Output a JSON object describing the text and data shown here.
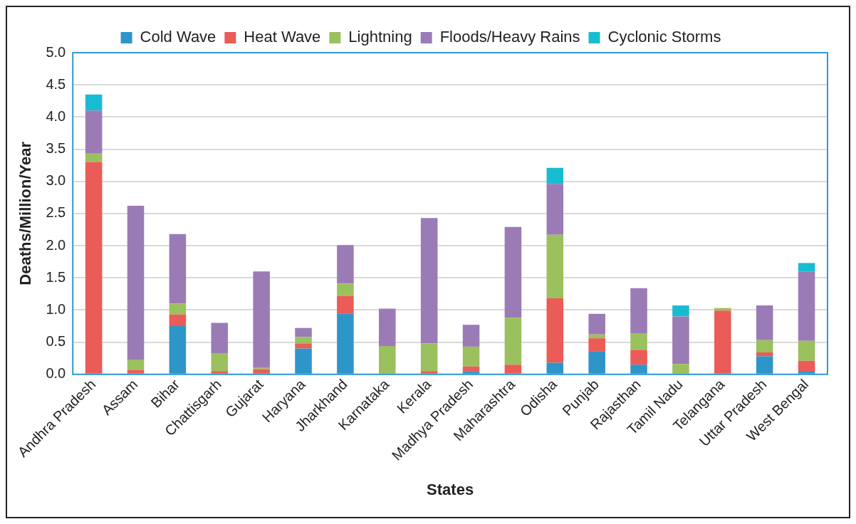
{
  "chart_data": {
    "type": "bar",
    "stacked": true,
    "xlabel": "States",
    "ylabel": "Deaths/Million/Year",
    "categories": [
      "Andhra Pradesh",
      "Assam",
      "Bihar",
      "Chattisgarh",
      "Gujarat",
      "Haryana",
      "Jharkhand",
      "Karnataka",
      "Kerala",
      "Madhya Pradesh",
      "Maharashtra",
      "Odisha",
      "Punjab",
      "Rajasthan",
      "Tamil Nadu",
      "Telangana",
      "Uttar Pradesh",
      "West Bengal"
    ],
    "series": [
      {
        "name": "Cold Wave",
        "color": "#2e95c9",
        "values": [
          0,
          0,
          0.75,
          0,
          0,
          0.4,
          0.94,
          0,
          0,
          0.05,
          0,
          0.18,
          0.36,
          0.15,
          0,
          0,
          0.28,
          0.04
        ]
      },
      {
        "name": "Heat Wave",
        "color": "#eb5b57",
        "values": [
          3.3,
          0.07,
          0.18,
          0.05,
          0.08,
          0.08,
          0.28,
          0,
          0.05,
          0.07,
          0.15,
          1.0,
          0.2,
          0.23,
          0,
          0.99,
          0.06,
          0.17
        ]
      },
      {
        "name": "Lightning",
        "color": "#9bc05e",
        "values": [
          0.13,
          0.16,
          0.17,
          0.28,
          0.02,
          0.1,
          0.19,
          0.44,
          0.43,
          0.31,
          0.73,
          0.99,
          0.06,
          0.26,
          0.16,
          0.04,
          0.19,
          0.31
        ]
      },
      {
        "name": "Floods/Heavy Rains",
        "color": "#9b7bb6",
        "values": [
          0.67,
          2.39,
          1.08,
          0.47,
          1.5,
          0.14,
          0.6,
          0.58,
          1.95,
          0.34,
          1.41,
          0.79,
          0.32,
          0.7,
          0.74,
          0,
          0.54,
          1.08
        ]
      },
      {
        "name": "Cyclonic Storms",
        "color": "#18bcd2",
        "values": [
          0.25,
          0,
          0,
          0,
          0,
          0,
          0,
          0,
          0,
          0,
          0,
          0.25,
          0,
          0,
          0.17,
          0,
          0,
          0.13
        ]
      }
    ],
    "ylim": [
      0,
      5.0
    ],
    "yticks": [
      {
        "value": 0,
        "label": "0.0"
      },
      {
        "value": 0.5,
        "label": "0.5"
      },
      {
        "value": 1,
        "label": "1.0"
      },
      {
        "value": 1.5,
        "label": "1.5"
      },
      {
        "value": 2,
        "label": "2.0"
      },
      {
        "value": 2.5,
        "label": "2.5"
      },
      {
        "value": 3,
        "label": "3.0"
      },
      {
        "value": 3.5,
        "label": "3.5"
      },
      {
        "value": 4,
        "label": "4.0"
      },
      {
        "value": 4.5,
        "label": "4.5"
      },
      {
        "value": 5,
        "label": "5.0"
      }
    ],
    "grid": "y",
    "legend": "top"
  }
}
